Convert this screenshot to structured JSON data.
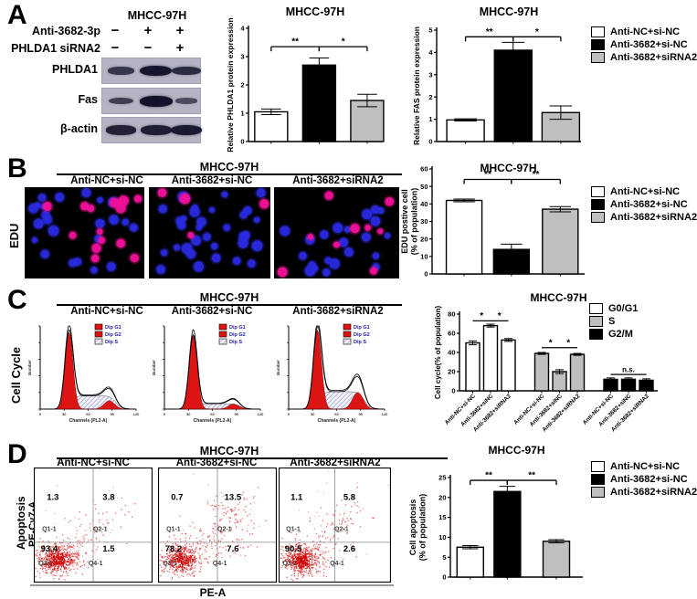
{
  "cell_line": "MHCC-97H",
  "groups": [
    "Anti-NC+si-NC",
    "Anti-3682+si-NC",
    "Anti-3682+siRNA2"
  ],
  "colors": {
    "white_bar": "#ffffff",
    "black_bar": "#000000",
    "gray_bar": "#bfbfbf",
    "blot_bg": "#b5b4c3",
    "band": "#12122a",
    "edu_blue": "#2a2ae0",
    "edu_pink": "#f2109a",
    "flow_red": "#dd1414",
    "flow_hatch": "#8585c4",
    "scatter_red": "#dd2222"
  },
  "panelA": {
    "letter": "A",
    "blot_title": "MHCC-97H",
    "conditions": [
      {
        "label": "Anti-3682-3p",
        "symbols": [
          "−",
          "+",
          "+"
        ]
      },
      {
        "label": "PHLDA1 siRNA2",
        "symbols": [
          "−",
          "−",
          "+"
        ]
      }
    ],
    "bands": [
      {
        "label": "PHLDA1",
        "intensities": [
          0.55,
          0.95,
          0.7
        ]
      },
      {
        "label": "Fas",
        "intensities": [
          0.45,
          1.0,
          0.28
        ]
      },
      {
        "label": "β-actin",
        "intensities": [
          0.8,
          0.85,
          0.9
        ]
      }
    ],
    "phlda1_chart": {
      "type": "bar",
      "title": "MHCC-97H",
      "ylabel": [
        "Relative PHLDA1 protein expression"
      ],
      "ylim": [
        0,
        4
      ],
      "ystep": 1,
      "values": [
        1.05,
        2.7,
        1.45
      ],
      "errors": [
        0.1,
        0.25,
        0.22
      ],
      "bar_colors": [
        "white",
        "black",
        "gray"
      ],
      "sig": [
        {
          "a": 0,
          "b": 1,
          "text": "**",
          "y": 3.35
        },
        {
          "a": 1,
          "b": 2,
          "text": "*",
          "y": 3.35
        }
      ]
    },
    "fas_chart": {
      "type": "bar",
      "title": "MHCC-97H",
      "ylabel": [
        "Relative FAS protein expression"
      ],
      "ylim": [
        0,
        5
      ],
      "ystep": 1,
      "values": [
        0.97,
        4.1,
        1.3
      ],
      "errors": [
        0.05,
        0.35,
        0.3
      ],
      "bar_colors": [
        "white",
        "black",
        "gray"
      ],
      "sig": [
        {
          "a": 0,
          "b": 1,
          "text": "**",
          "y": 4.7
        },
        {
          "a": 1,
          "b": 2,
          "text": "*",
          "y": 4.7
        }
      ]
    }
  },
  "panelB": {
    "letter": "B",
    "title": "MHCC-97H",
    "row_label": "EDU",
    "images": [
      {
        "pink_cells": 14,
        "blue_cells": 24
      },
      {
        "pink_cells": 4,
        "blue_cells": 32
      },
      {
        "pink_cells": 9,
        "blue_cells": 22
      }
    ],
    "chart": {
      "type": "bar",
      "title": "MHCC-97H",
      "ylabel": [
        "EDU postive cell",
        "(% of population)"
      ],
      "ylim": [
        0,
        60
      ],
      "ystep": 10,
      "values": [
        42,
        14,
        37
      ],
      "errors": [
        0.8,
        3,
        1.5
      ],
      "bar_colors": [
        "white",
        "black",
        "gray"
      ],
      "sig": [
        {
          "a": 0,
          "b": 1,
          "text": "**",
          "y": 54
        },
        {
          "a": 1,
          "b": 2,
          "text": "**",
          "y": 54
        }
      ]
    }
  },
  "panelC": {
    "letter": "C",
    "title": "MHCC-97H",
    "row_label": "Cell Cycle",
    "flow_legend": [
      "Dip G1",
      "Dip G2",
      "Dip S"
    ],
    "hist_xlabel": "Channels (PL2-A)",
    "hist_ylabel": "Number",
    "hist_xticks": [
      "0",
      "30",
      "60",
      "90",
      "120"
    ],
    "histograms": [
      {
        "g1_height": 0.92,
        "g2_height": 0.1,
        "s_height": 0.16
      },
      {
        "g1_height": 0.88,
        "g2_height": 0.06,
        "s_height": 0.065
      },
      {
        "g1_height": 0.95,
        "g2_height": 0.2,
        "s_height": 0.21
      }
    ],
    "chart": {
      "type": "grouped-bar",
      "title": "MHCC-97H",
      "ylabel": [
        "Cell cycle(% of population)"
      ],
      "ylim": [
        0,
        80
      ],
      "ystep": 20,
      "series": [
        {
          "name": "G0/G1",
          "color": "white",
          "values": [
            50,
            68,
            53
          ],
          "errors": [
            2,
            1.5,
            1.5
          ]
        },
        {
          "name": "S",
          "color": "gray",
          "values": [
            39,
            20,
            38
          ],
          "errors": [
            1,
            2,
            1
          ]
        },
        {
          "name": "G2/M",
          "color": "black",
          "values": [
            12,
            12,
            11
          ],
          "errors": [
            1.5,
            1.5,
            1.5
          ]
        }
      ],
      "xlabels": [
        "Anti-NC+si-NC",
        "Anti-3682+siNC",
        "Anti-3682+siRNA2"
      ],
      "sig": [
        {
          "a": 0,
          "b": 1,
          "text": "*",
          "y": 73
        },
        {
          "a": 1,
          "b": 2,
          "text": "*",
          "y": 73
        },
        {
          "a": 3,
          "b": 4,
          "text": "*",
          "y": 45
        },
        {
          "a": 4,
          "b": 5,
          "text": "*",
          "y": 45
        },
        {
          "a": 6,
          "b": 8,
          "text": "n.s.",
          "y": 17
        }
      ]
    }
  },
  "panelD": {
    "letter": "D",
    "title": "MHCC-97H",
    "row_label_1": "Apoptosis",
    "row_label_2": "PE-Cy7-A",
    "x_axis_label": "PE-A",
    "quadrant_labels": [
      "Q1-1",
      "Q2-1",
      "Q3-1",
      "Q4-1"
    ],
    "scatters": [
      {
        "q1": "1.3",
        "q2": "3.8",
        "q3": "93.4",
        "q4": "1.5"
      },
      {
        "q1": "0.7",
        "q2": "13.5",
        "q3": "78.2",
        "q4": "7.6"
      },
      {
        "q1": "1.1",
        "q2": "5.8",
        "q3": "90.5",
        "q4": "2.6"
      }
    ],
    "chart": {
      "type": "bar",
      "title": "MHCC-97H",
      "ylabel": [
        "Cell apoptosis",
        "(% of population)"
      ],
      "ylim": [
        0,
        25
      ],
      "ystep": 5,
      "values": [
        7.5,
        21.5,
        9
      ],
      "errors": [
        0.4,
        1.3,
        0.4
      ],
      "bar_colors": [
        "white",
        "black",
        "gray"
      ],
      "sig": [
        {
          "a": 0,
          "b": 1,
          "text": "**",
          "y": 24.3
        },
        {
          "a": 1,
          "b": 2,
          "text": "**",
          "y": 24.3
        }
      ]
    }
  },
  "chart_data": [
    {
      "type": "bar",
      "panel": "A",
      "title": "MHCC-97H",
      "ylabel": "Relative PHLDA1 protein expression",
      "categories": [
        "Anti-NC+si-NC",
        "Anti-3682+si-NC",
        "Anti-3682+siRNA2"
      ],
      "values": [
        1.05,
        2.7,
        1.45
      ],
      "ylim": [
        0,
        4
      ]
    },
    {
      "type": "bar",
      "panel": "A",
      "title": "MHCC-97H",
      "ylabel": "Relative FAS protein expression",
      "categories": [
        "Anti-NC+si-NC",
        "Anti-3682+si-NC",
        "Anti-3682+siRNA2"
      ],
      "values": [
        0.97,
        4.1,
        1.3
      ],
      "ylim": [
        0,
        5
      ]
    },
    {
      "type": "bar",
      "panel": "B",
      "title": "MHCC-97H",
      "ylabel": "EDU postive cell (% of population)",
      "categories": [
        "Anti-NC+si-NC",
        "Anti-3682+si-NC",
        "Anti-3682+siRNA2"
      ],
      "values": [
        42,
        14,
        37
      ],
      "ylim": [
        0,
        60
      ]
    },
    {
      "type": "bar",
      "panel": "C",
      "title": "MHCC-97H",
      "ylabel": "Cell cycle(% of population)",
      "categories": [
        "Anti-NC+si-NC",
        "Anti-3682+siNC",
        "Anti-3682+siRNA2"
      ],
      "series": [
        {
          "name": "G0/G1",
          "values": [
            50,
            68,
            53
          ]
        },
        {
          "name": "S",
          "values": [
            39,
            20,
            38
          ]
        },
        {
          "name": "G2/M",
          "values": [
            12,
            12,
            11
          ]
        }
      ],
      "ylim": [
        0,
        80
      ]
    },
    {
      "type": "bar",
      "panel": "D",
      "title": "MHCC-97H",
      "ylabel": "Cell apoptosis (% of population)",
      "categories": [
        "Anti-NC+si-NC",
        "Anti-3682+si-NC",
        "Anti-3682+siRNA2"
      ],
      "values": [
        7.5,
        21.5,
        9
      ],
      "ylim": [
        0,
        25
      ]
    }
  ]
}
